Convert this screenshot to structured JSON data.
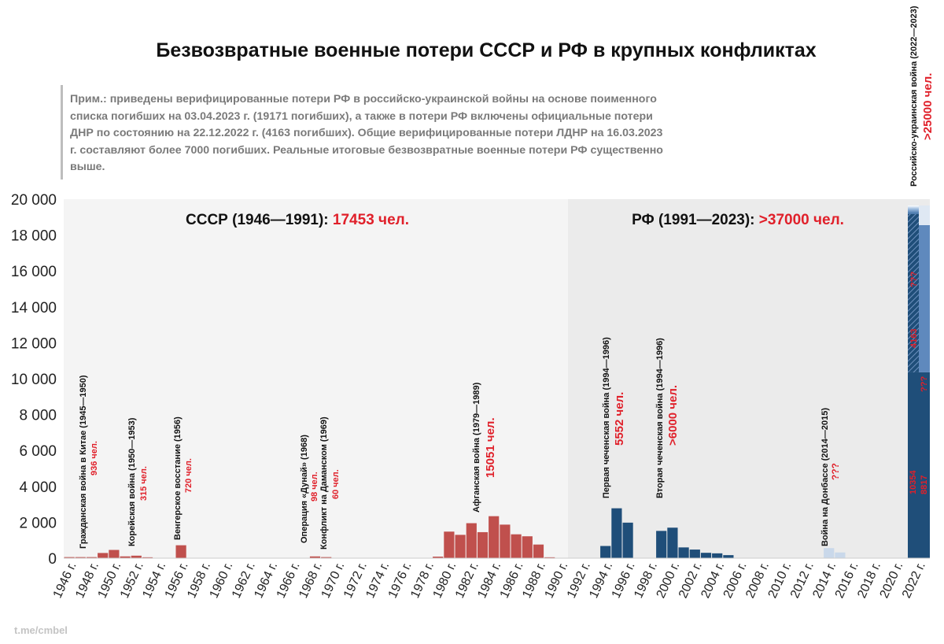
{
  "title": "Безвозвратные военные потери СССР и РФ в крупных конфликтах",
  "note": "Прим.: приведены верифицированные потери РФ в российско-украинской войны на основе поименного списка погибших на 03.04.2023 г. (19171 погибших), а также в потери РФ включены официальные потери ДНР по состоянию на 22.12.2022 г. (4163 погибших). Общие верифицированные потери ЛДНР на 16.03.2023 г. составляют более 7000 погибших. Реальные итоговые безвозвратные военные потери РФ существенно выше.",
  "footer": "t.me/cmbel",
  "colors": {
    "ussr": "#c0504d",
    "rf": "#1f4e79",
    "rf_light": "#9ebde0",
    "accent": "#e0202a"
  },
  "chart_data": {
    "type": "bar",
    "ylim": [
      0,
      20000
    ],
    "yticks": [
      "0",
      "2 000",
      "4 000",
      "6 000",
      "8 000",
      "10 000",
      "12 000",
      "14 000",
      "16 000",
      "18 000",
      "20 000"
    ],
    "xlim": [
      1946,
      2023
    ],
    "xticks": [
      "1946 г.",
      "1948 г.",
      "1950 г.",
      "1952 г.",
      "1954 г.",
      "1956 г.",
      "1958 г.",
      "1960 г.",
      "1962 г.",
      "1964 г.",
      "1966 г.",
      "1968 г.",
      "1970 г.",
      "1972 г.",
      "1974 г.",
      "1976 г.",
      "1978 г.",
      "1980 г.",
      "1982 г.",
      "1984 г.",
      "1986 г.",
      "1988 г.",
      "1990 г.",
      "1992 г.",
      "1994 г.",
      "1996 г.",
      "1998 г.",
      "2000 г.",
      "2002 г.",
      "2004 г.",
      "2006 г.",
      "2008 г.",
      "2010 г.",
      "2012 г.",
      "2014 г.",
      "2016 г.",
      "2018 г.",
      "2020 г.",
      "2022 г."
    ],
    "periods": [
      {
        "label": "СССР (1946—1991): ",
        "value": "17453 чел."
      },
      {
        "label": "РФ (1991—2023): ",
        "value": ">37000 чел."
      }
    ],
    "series": [
      {
        "name": "СССР",
        "color": "#c0504d",
        "x": [
          1946,
          1947,
          1948,
          1949,
          1950,
          1951,
          1952,
          1953,
          1956,
          1968,
          1969,
          1979,
          1980,
          1981,
          1982,
          1983,
          1984,
          1985,
          1986,
          1987,
          1988,
          1989
        ],
        "values": [
          60,
          60,
          60,
          290,
          460,
          100,
          140,
          50,
          720,
          98,
          60,
          86,
          1480,
          1300,
          1950,
          1450,
          2340,
          1870,
          1330,
          1220,
          760,
          50
        ]
      },
      {
        "name": "РФ",
        "color": "#1f4e79",
        "x": [
          1994,
          1995,
          1996,
          1999,
          2000,
          2001,
          2002,
          2003,
          2004,
          2005
        ],
        "values": [
          680,
          2780,
          1980,
          1520,
          1700,
          600,
          480,
          300,
          270,
          170
        ]
      },
      {
        "name": "Война на Донбассе",
        "color": "#c9d8ea",
        "x": [
          2014,
          2015
        ],
        "values": [
          560,
          320
        ]
      }
    ],
    "stack_2022": {
      "total_label": ">25000 чел.",
      "segments": [
        {
          "label": "10354",
          "value": 10354
        },
        {
          "label": "8817",
          "value": 8817
        },
        {
          "label": "4163",
          "value": 4163
        },
        {
          "label": "???",
          "value": 0
        },
        {
          "label": "???",
          "value": 0
        }
      ]
    },
    "annotations": [
      {
        "name": "Гражданская война в Китае (1945—1950)",
        "value": "936 чел."
      },
      {
        "name": "Корейская война (1950—1953)",
        "value": "315 чел."
      },
      {
        "name": "Венгерское восстание (1956)",
        "value": "720 чел."
      },
      {
        "name": "Операция «Дунай» (1968)",
        "value": "98 чел."
      },
      {
        "name": "Конфликт на Даманском (1969)",
        "value": "60 чел."
      },
      {
        "name": "Афганская война (1979—1989)",
        "value": "15051 чел."
      },
      {
        "name": "Первая чеченская война (1994—1996)",
        "value": "5552 чел."
      },
      {
        "name": "Вторая чеченская война (1994—1996)",
        "value": ">6000 чел."
      },
      {
        "name": "Война на Донбассе (2014—2015)",
        "value": "???"
      },
      {
        "name": "Российско-украинская война (2022—2023)",
        "value": ">25000 чел."
      }
    ]
  }
}
